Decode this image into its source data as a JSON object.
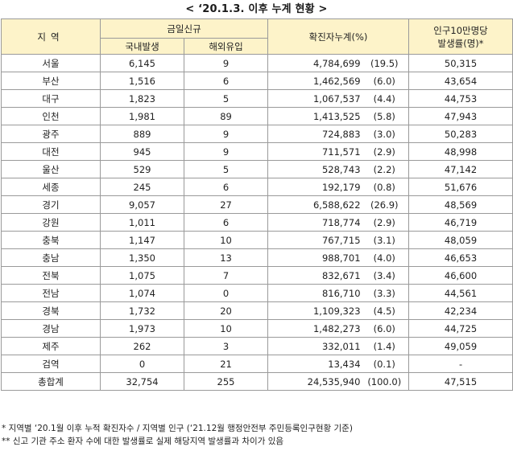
{
  "title": "< ‘20.1.3. 이후 누계 현황 >",
  "headers": {
    "region": "지역",
    "today_new": "금일신규",
    "domestic": "국내발생",
    "overseas": "해외유입",
    "cumulative": "확진자누계(%)",
    "per100k_line1": "인구10만명당",
    "per100k_line2": "발생률(명)*"
  },
  "rows": [
    {
      "region": "서울",
      "domestic": "6,145",
      "overseas": "9",
      "cumulative": "4,784,699",
      "percent": "(19.5)",
      "per100k": "50,315"
    },
    {
      "region": "부산",
      "domestic": "1,516",
      "overseas": "6",
      "cumulative": "1,462,569",
      "percent": "(6.0)",
      "per100k": "43,654"
    },
    {
      "region": "대구",
      "domestic": "1,823",
      "overseas": "5",
      "cumulative": "1,067,537",
      "percent": "(4.4)",
      "per100k": "44,753"
    },
    {
      "region": "인천",
      "domestic": "1,981",
      "overseas": "89",
      "cumulative": "1,413,525",
      "percent": "(5.8)",
      "per100k": "47,943"
    },
    {
      "region": "광주",
      "domestic": "889",
      "overseas": "9",
      "cumulative": "724,883",
      "percent": "(3.0)",
      "per100k": "50,283"
    },
    {
      "region": "대전",
      "domestic": "945",
      "overseas": "9",
      "cumulative": "711,571",
      "percent": "(2.9)",
      "per100k": "48,998"
    },
    {
      "region": "울산",
      "domestic": "529",
      "overseas": "5",
      "cumulative": "528,743",
      "percent": "(2.2)",
      "per100k": "47,142"
    },
    {
      "region": "세종",
      "domestic": "245",
      "overseas": "6",
      "cumulative": "192,179",
      "percent": "(0.8)",
      "per100k": "51,676"
    },
    {
      "region": "경기",
      "domestic": "9,057",
      "overseas": "27",
      "cumulative": "6,588,622",
      "percent": "(26.9)",
      "per100k": "48,569"
    },
    {
      "region": "강원",
      "domestic": "1,011",
      "overseas": "6",
      "cumulative": "718,774",
      "percent": "(2.9)",
      "per100k": "46,719"
    },
    {
      "region": "충북",
      "domestic": "1,147",
      "overseas": "10",
      "cumulative": "767,715",
      "percent": "(3.1)",
      "per100k": "48,059"
    },
    {
      "region": "충남",
      "domestic": "1,350",
      "overseas": "13",
      "cumulative": "988,701",
      "percent": "(4.0)",
      "per100k": "46,653"
    },
    {
      "region": "전북",
      "domestic": "1,075",
      "overseas": "7",
      "cumulative": "832,671",
      "percent": "(3.4)",
      "per100k": "46,600"
    },
    {
      "region": "전남",
      "domestic": "1,074",
      "overseas": "0",
      "cumulative": "816,710",
      "percent": "(3.3)",
      "per100k": "44,561"
    },
    {
      "region": "경북",
      "domestic": "1,732",
      "overseas": "20",
      "cumulative": "1,109,323",
      "percent": "(4.5)",
      "per100k": "42,234"
    },
    {
      "region": "경남",
      "domestic": "1,973",
      "overseas": "10",
      "cumulative": "1,482,273",
      "percent": "(6.0)",
      "per100k": "44,725"
    },
    {
      "region": "제주",
      "domestic": "262",
      "overseas": "3",
      "cumulative": "332,011",
      "percent": "(1.4)",
      "per100k": "49,059"
    },
    {
      "region": "검역",
      "domestic": "0",
      "overseas": "21",
      "cumulative": "13,434",
      "percent": "(0.1)",
      "per100k": "-"
    }
  ],
  "total": {
    "region": "총합계",
    "domestic": "32,754",
    "overseas": "255",
    "cumulative": "24,535,940",
    "percent": "(100.0)",
    "per100k": "47,515"
  },
  "notes": [
    "* 지역별 ‘20.1월 이후 누적 확진자수 / 지역별 인구 (‘21.12월 행정안전부 주민등록인구현황 기준)",
    "** 신고 기관 주소 환자 수에 대한 발생률로 실제 해당지역 발생률과 차이가 있음"
  ],
  "colors": {
    "header_bg": "#fdf3c9",
    "border": "#9a9a9a"
  }
}
